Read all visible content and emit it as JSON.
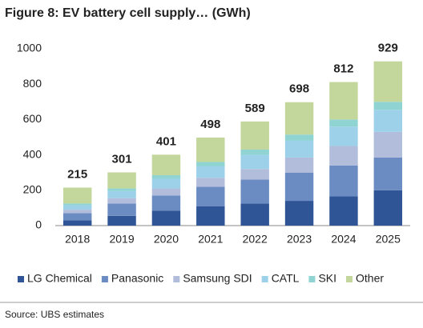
{
  "chart_data": {
    "type": "stacked-bar",
    "title": "Figure 8: EV battery cell supply… (GWh)",
    "categories": [
      "2018",
      "2019",
      "2020",
      "2021",
      "2022",
      "2023",
      "2024",
      "2025"
    ],
    "series": [
      {
        "name": "LG Chemical",
        "color": "#2f5597",
        "values": [
          30,
          55,
          85,
          110,
          125,
          140,
          165,
          200
        ]
      },
      {
        "name": "Panasonic",
        "color": "#6b8cc2",
        "values": [
          40,
          70,
          85,
          110,
          135,
          160,
          175,
          185
        ]
      },
      {
        "name": "Samsung SDI",
        "color": "#b2bcdb",
        "values": [
          20,
          30,
          40,
          50,
          60,
          85,
          110,
          145
        ]
      },
      {
        "name": "CATL",
        "color": "#9dd1ea",
        "values": [
          25,
          40,
          55,
          65,
          80,
          95,
          110,
          125
        ]
      },
      {
        "name": "SKI",
        "color": "#8fd4d2",
        "values": [
          10,
          15,
          20,
          25,
          30,
          35,
          40,
          45
        ]
      },
      {
        "name": "Other",
        "color": "#c3d69b",
        "values": [
          90,
          91,
          116,
          138,
          159,
          183,
          212,
          229
        ]
      }
    ],
    "totals": [
      215,
      301,
      401,
      498,
      589,
      698,
      812,
      929
    ],
    "ylim": [
      0,
      1000
    ],
    "yticks": [
      0,
      200,
      400,
      600,
      800,
      1000
    ],
    "grid": false,
    "legend": "bottom",
    "source": "Source:  UBS estimates"
  }
}
